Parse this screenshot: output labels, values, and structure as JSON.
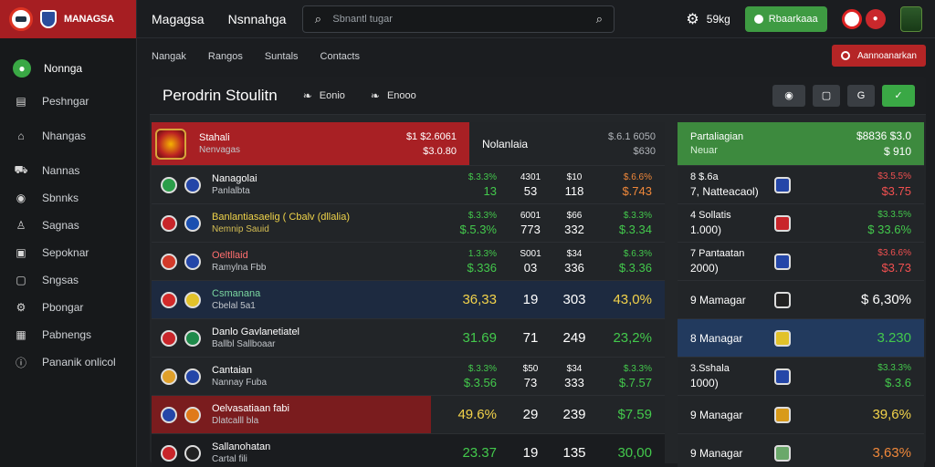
{
  "brand": {
    "name": "MANAGSA"
  },
  "topbar": {
    "title": "Magagsa",
    "subtitle": "Nsnnahga",
    "search_placeholder": "Sbnantl tugar",
    "settings_label": "59kg",
    "notif_label": "Rbaarkaaa"
  },
  "sidebar": {
    "items": [
      {
        "label": "Nonnga",
        "icon": "user-icon"
      },
      {
        "label": "Peshngar",
        "icon": "document-icon"
      },
      {
        "label": "Nhangas",
        "icon": "home-icon"
      },
      {
        "label": "Nannas",
        "icon": "cart-icon"
      },
      {
        "label": "Sbnnks",
        "icon": "eye-icon"
      },
      {
        "label": "Sagnas",
        "icon": "person-icon"
      },
      {
        "label": "Sepoknar",
        "icon": "message-icon"
      },
      {
        "label": "Sngsas",
        "icon": "chat-icon"
      },
      {
        "label": "Pbongar",
        "icon": "settings-icon"
      },
      {
        "label": "Pabnengs",
        "icon": "grid-icon"
      },
      {
        "label": "Pananik onlicol",
        "icon": "info-icon"
      }
    ]
  },
  "subnav": {
    "links": [
      "Nangak",
      "Rangos",
      "Suntals",
      "Contacts"
    ],
    "action_label": "Aannoanarkan"
  },
  "panel": {
    "title": "Perodrin Stoulitn",
    "links": [
      "Eonio",
      "Enooo"
    ],
    "tools": [
      "eye-icon",
      "square-icon",
      "refresh-icon",
      "check-icon"
    ]
  },
  "main_table": {
    "header": {
      "name1": "Stahali",
      "name2": "Nenvagas",
      "amount1": "$1 $2.6061",
      "amount2": "$3.0.80",
      "col_label": "Nolanlaia",
      "col_r1": "$.6.1 6050",
      "col_r2": "$630"
    },
    "rows": [
      {
        "n1": "Nanagolai",
        "n2": "Panlalbta",
        "v1a": "$.3.3%",
        "v1b": "13",
        "v2a": "4301",
        "v2b": "53",
        "v3a": "$10",
        "v3b": "118",
        "v4a": "$.6.6%",
        "v4b": "$.743",
        "style": "stack",
        "c1": "green-t",
        "c4": "orange-t",
        "name_style": ""
      },
      {
        "n1": "Banlantiasaelig ( Cbalv (dllalia)",
        "n2": "Nemnip Sauid",
        "v1a": "$.3.3%",
        "v1b": "$.5.3%",
        "v2a": "6001",
        "v2b": "773",
        "v3a": "$66",
        "v3b": "332",
        "v4a": "$.3.3%",
        "v4b": "$.3.34",
        "style": "stack",
        "c1": "green-t",
        "c4": "green-t",
        "name_style": "yel"
      },
      {
        "n1": "Oeltllaid",
        "n2": "Ramylna Fbb",
        "v1a": "1.3.3%",
        "v1b": "$.336",
        "v2a": "S001",
        "v2b": "03",
        "v3a": "$34",
        "v3b": "336",
        "v4a": "$.6.3%",
        "v4b": "$.3.36",
        "style": "stack",
        "c1": "green-t",
        "c4": "green-t",
        "name_style": "red-t"
      },
      {
        "n1": "Csmanana",
        "n2": "Cbelal 5a1",
        "v1": "36,33",
        "v2": "19",
        "v3": "303",
        "v4": "43,0%",
        "style": "single",
        "c1": "yellow-t",
        "c4": "yellow-t",
        "name_style": "teal",
        "row": "blue"
      },
      {
        "n1": "Danlo Gavlanetiatel",
        "n2": "Ballbl Sallboaar",
        "v1": "31.69",
        "v2": "71",
        "v3": "249",
        "v4": "23,2%",
        "style": "single",
        "c1": "green-t",
        "c4": "green-t",
        "name_style": ""
      },
      {
        "n1": "Cantaian",
        "n2": "Nannay Fuba",
        "v1a": "$.3.3%",
        "v1b": "$.3.56",
        "v2a": "$50",
        "v2b": "73",
        "v3a": "$34",
        "v3b": "333",
        "v4a": "$.3.3%",
        "v4b": "$.7.57",
        "style": "stack",
        "c1": "green-t",
        "c4": "green-t",
        "name_style": ""
      },
      {
        "n1": "Oelvasatiaan fabi",
        "n2": "Dlatcalll bla",
        "v1": "49.6%",
        "v2": "29",
        "v3": "239",
        "v4": "$7.59",
        "style": "single",
        "c1": "yellow-t",
        "c4": "green-t",
        "name_style": "",
        "row": "red"
      },
      {
        "n1": "Sallanohatan",
        "n2": "Cartal fili",
        "v1": "23.37",
        "v2": "19",
        "v3": "135",
        "v4": "30,00",
        "style": "single",
        "c1": "green-t",
        "c4": "green-t",
        "name_style": "",
        "row": "dark"
      }
    ]
  },
  "right_table": {
    "header": {
      "t1": "Partaliagian",
      "t2": "Neuar",
      "r1": "$8836 $3.0",
      "r2": "$ 910"
    },
    "rows": [
      {
        "t1": "8 $.6a",
        "t2": "7, Natteacaol)",
        "r1": "$3.5.5%",
        "r2": "$3.75",
        "c": "red-tx"
      },
      {
        "t1": "4 Sollatis",
        "t2": "1.000)",
        "r1": "$3.3.5%",
        "r2": "$ 33.6%",
        "c": "green-t"
      },
      {
        "t1": "7 Pantaatan",
        "t2": "2000)",
        "r1": "$3.6.6%",
        "r2": "$3.73",
        "c": "red-tx"
      },
      {
        "t1": "9 Mamagar",
        "t2": "",
        "r2": "$ 6,30%",
        "c": "white-t",
        "single": true
      },
      {
        "t1": "8 Managar",
        "t2": "",
        "r2": "3.230",
        "c": "green-t",
        "single": true,
        "row": "blue"
      },
      {
        "t1": "3.Sshala",
        "t2": "1000)",
        "r1": "$3.3.3%",
        "r2": "$.3.6",
        "c": "green-t"
      },
      {
        "t1": "9 Managar",
        "t2": "",
        "r2": "39,6%",
        "c": "yellow-t",
        "single": true
      },
      {
        "t1": "9 Managar",
        "t2": "",
        "r2": "3,63%",
        "c": "orange-t",
        "single": true
      }
    ]
  }
}
